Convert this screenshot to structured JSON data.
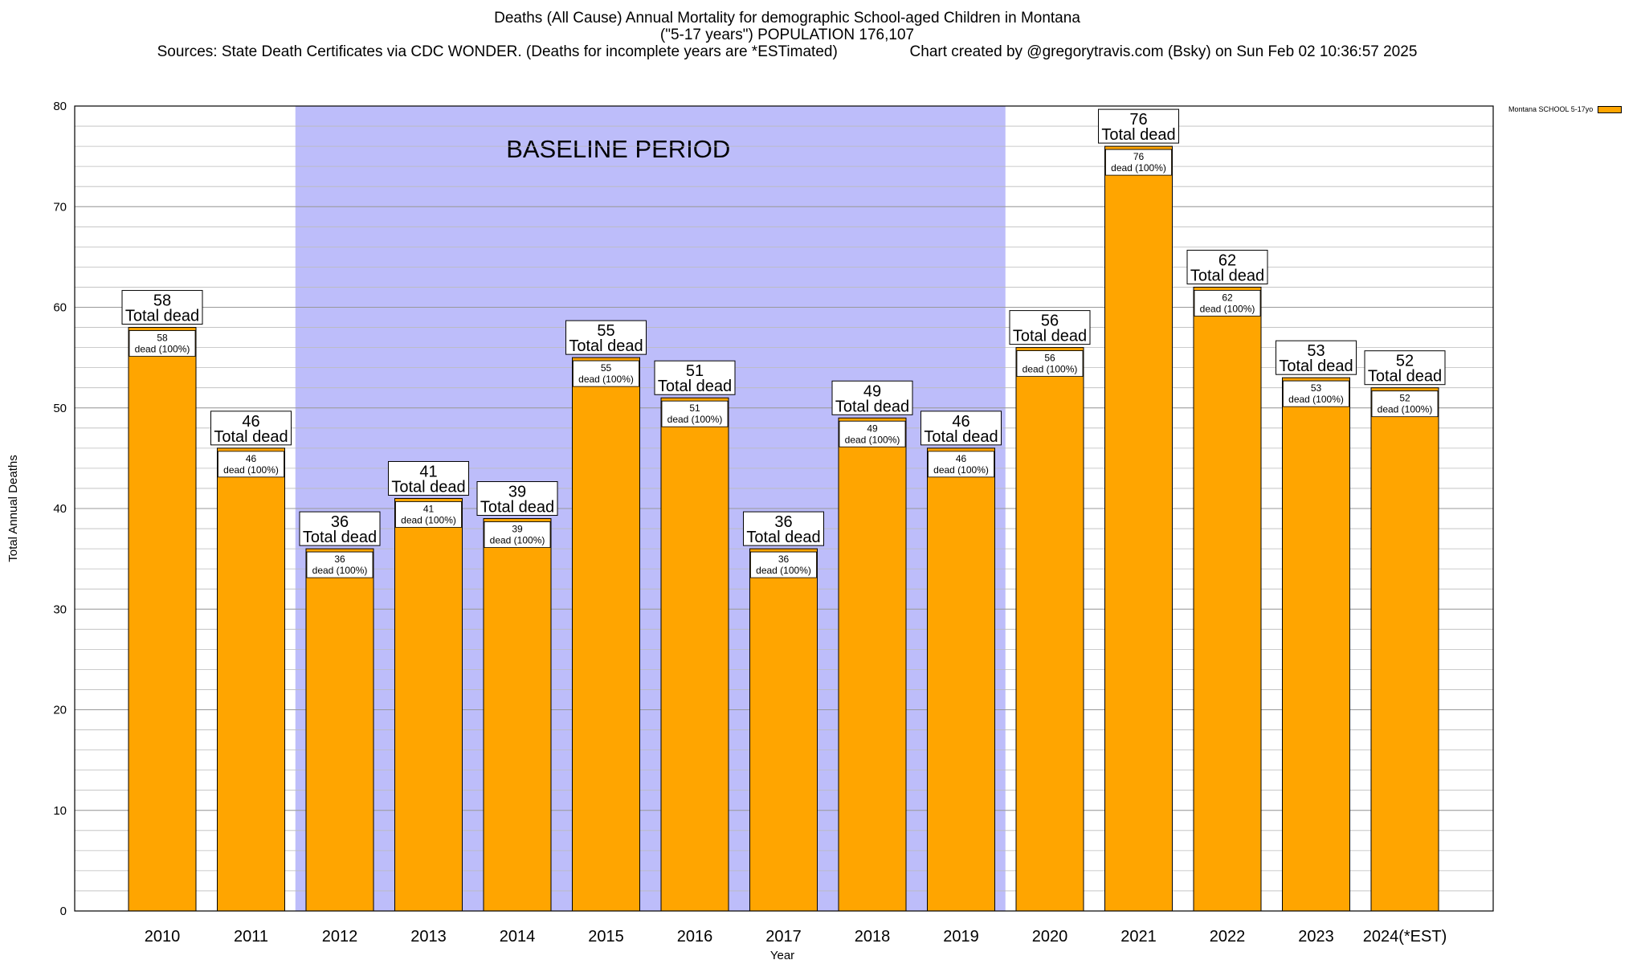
{
  "title": {
    "line1": "Deaths (All Cause) Annual Mortality for demographic School-aged Children in Montana",
    "line2": "(\"5-17 years\") POPULATION 176,107",
    "line3_left": "Sources: State Death Certificates via CDC WONDER. (Deaths for incomplete years are *ESTimated)",
    "line3_right": "Chart created by @gregorytravis.com (Bsky) on Sun Feb 02 10:36:57 2025"
  },
  "legend": {
    "label": "Montana SCHOOL 5-17yo"
  },
  "colors": {
    "bar": "#FFA500",
    "baseline": "#BDBDFA",
    "grid": "#BBBBBB"
  },
  "chart_data": {
    "type": "bar",
    "categories": [
      "2010",
      "2011",
      "2012",
      "2013",
      "2014",
      "2015",
      "2016",
      "2017",
      "2018",
      "2019",
      "2020",
      "2021",
      "2022",
      "2023",
      "2024(*EST)"
    ],
    "values": [
      58,
      46,
      36,
      41,
      39,
      55,
      51,
      36,
      49,
      46,
      56,
      76,
      62,
      53,
      52
    ],
    "series": [
      {
        "name": "Montana SCHOOL 5-17yo",
        "values": [
          58,
          46,
          36,
          41,
          39,
          55,
          51,
          36,
          49,
          46,
          56,
          76,
          62,
          53,
          52
        ]
      }
    ],
    "xlabel": "Year",
    "ylabel": "Total Annual Deaths",
    "ylim": [
      0,
      80
    ],
    "yticks": [
      0,
      10,
      20,
      30,
      40,
      50,
      60,
      70,
      80
    ],
    "minor_step": 2,
    "bar_label_suffix": "Total dead",
    "inner_label_suffix": "dead (100%)",
    "baseline": {
      "label": "BASELINE PERIOD",
      "start": "2012",
      "end": "2019"
    },
    "grid": true,
    "legend_position": "top-right"
  }
}
